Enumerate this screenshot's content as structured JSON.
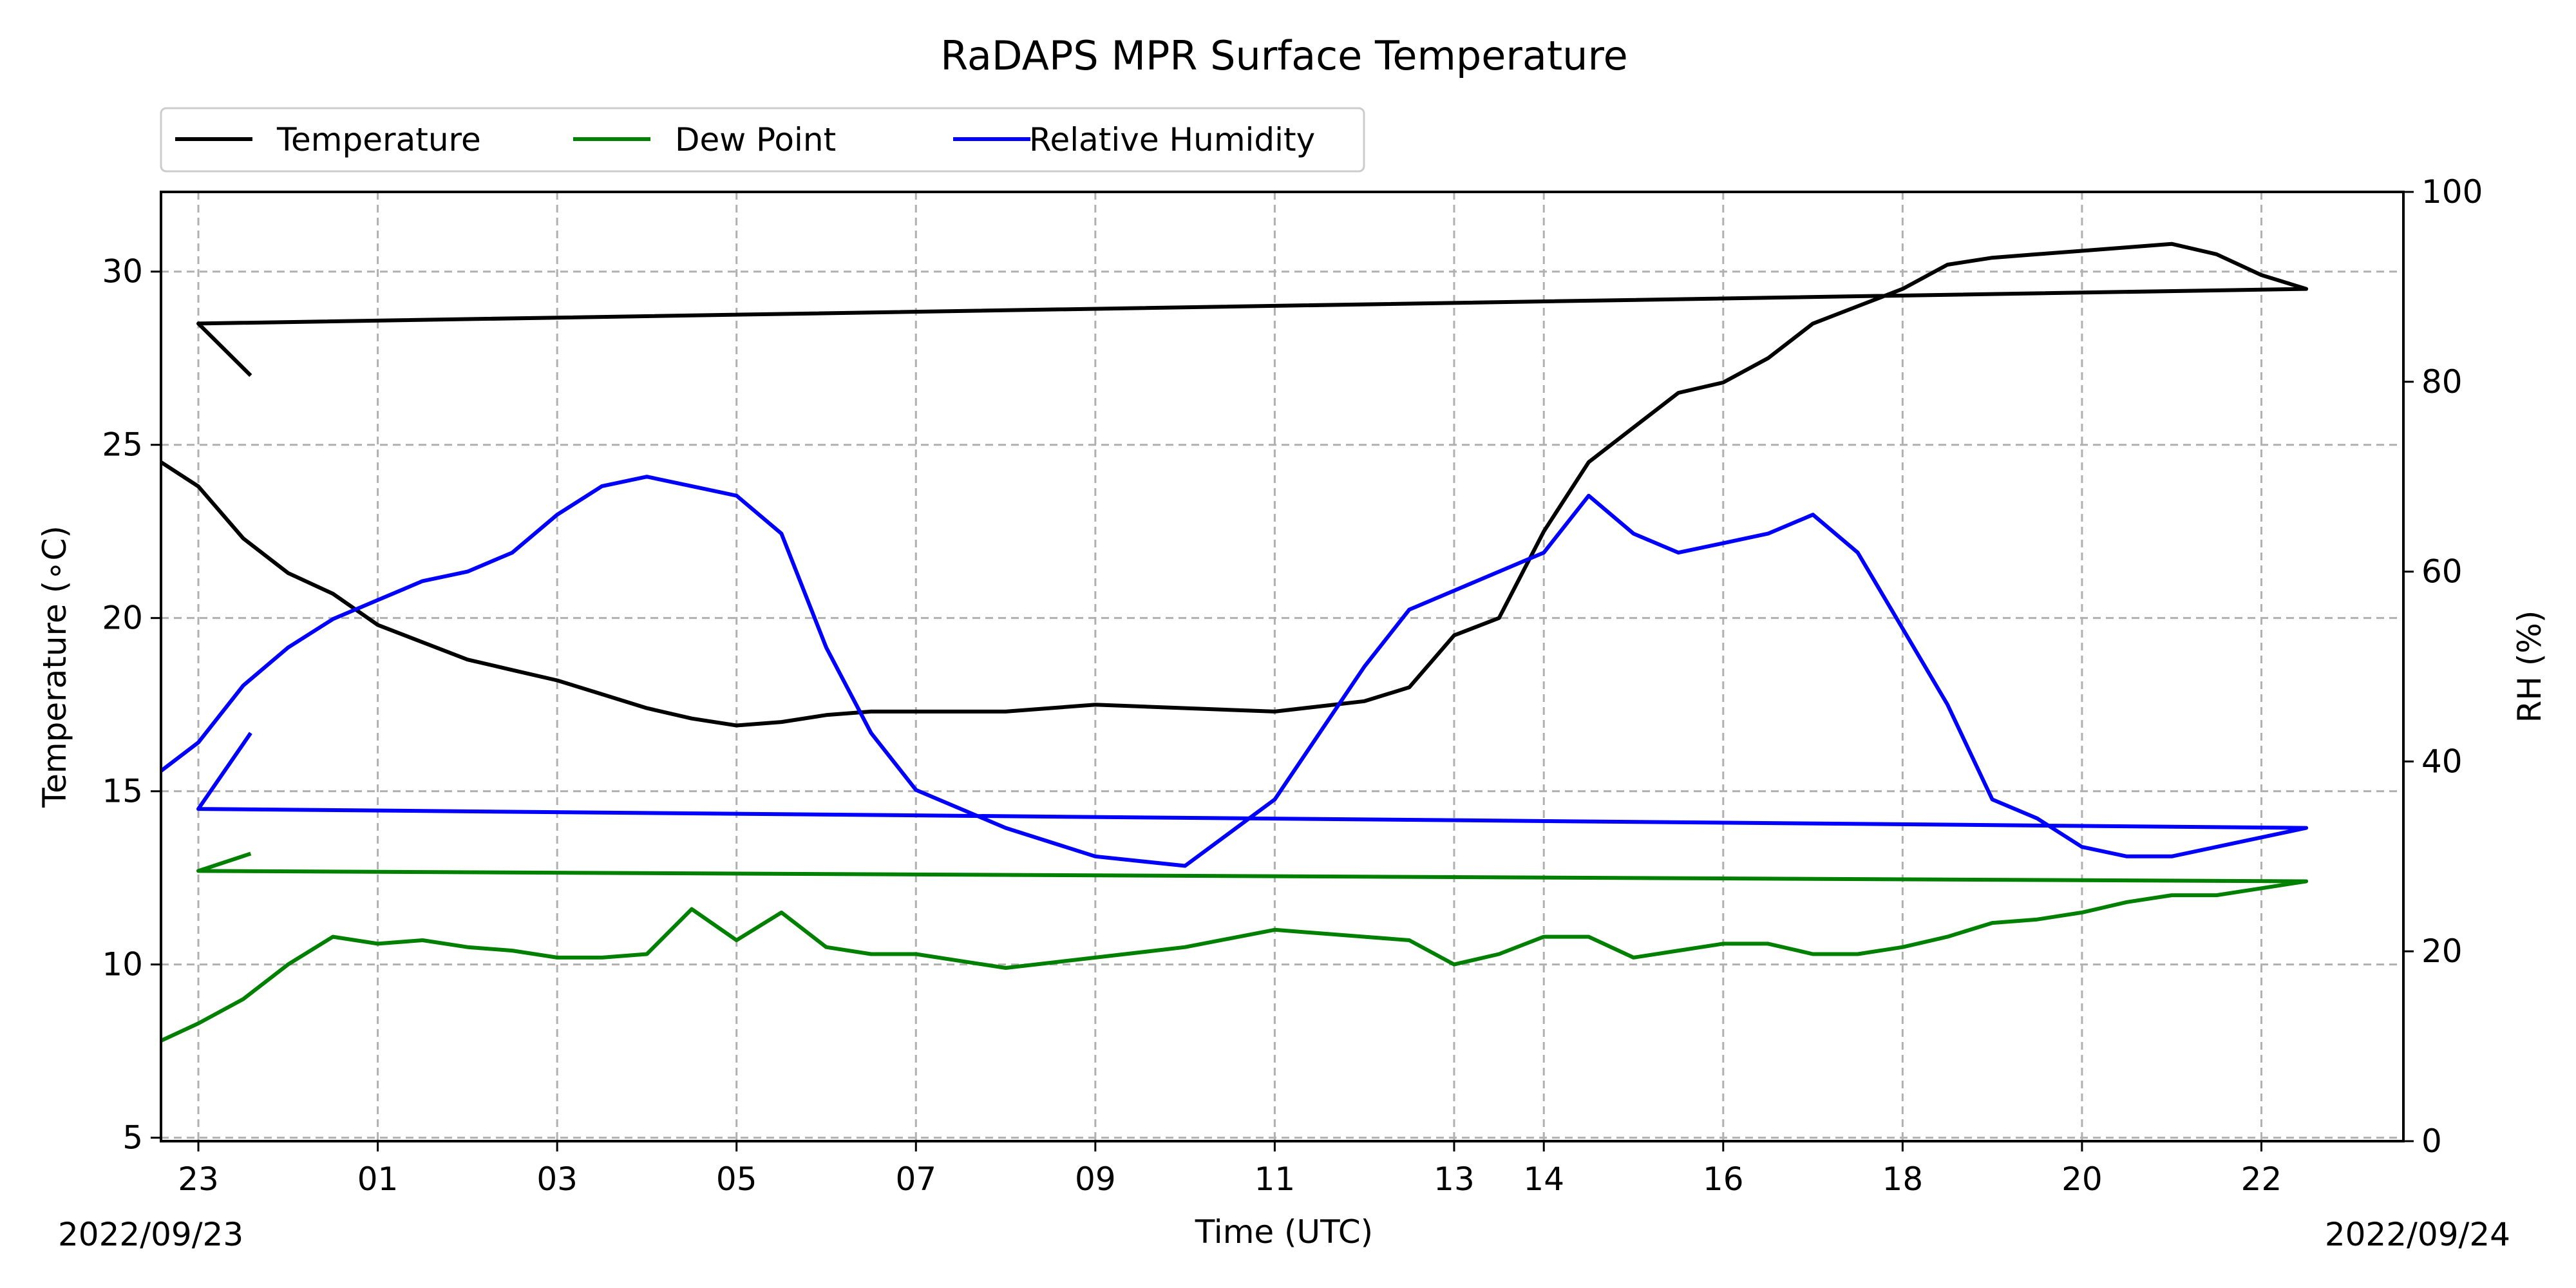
{
  "chart_data": {
    "type": "line",
    "title": "RaDAPS MPR Surface Temperature",
    "xlabel": "Time (UTC)",
    "ylabel_left": "Temperature (∘C)",
    "ylabel_right": "RH (%)",
    "start_date_label": "2022/09/23",
    "end_date_label": "2022/09/24",
    "x_tick_labels": [
      "23",
      "01",
      "03",
      "05",
      "07",
      "09",
      "11",
      "13",
      "14",
      "16",
      "18",
      "20",
      "22"
    ],
    "y_left_ticks": [
      "5",
      "10",
      "15",
      "20",
      "25",
      "30"
    ],
    "y_right_ticks": [
      "0",
      "20",
      "40",
      "60",
      "80",
      "100"
    ],
    "ylim_left": [
      4.9,
      32.3
    ],
    "ylim_right": [
      0,
      100
    ],
    "grid": true,
    "legend_placement": "top-left (above plot)",
    "series": [
      {
        "name": "Temperature",
        "color": "#000000",
        "axis": "left",
        "x": [
          "22:35",
          "23:00",
          "23:30",
          "00:00",
          "00:30",
          "01:00",
          "01:30",
          "02:00",
          "02:30",
          "03:00",
          "03:30",
          "04:00",
          "04:30",
          "05:00",
          "05:30",
          "06:00",
          "06:30",
          "07:00",
          "08:00",
          "09:00",
          "10:00",
          "11:00",
          "12:00",
          "12:30",
          "13:00",
          "13:30",
          "14:00",
          "14:30",
          "15:00",
          "15:30",
          "16:00",
          "16:30",
          "17:00",
          "17:30",
          "18:00",
          "18:30",
          "19:00",
          "19:30",
          "20:00",
          "20:30",
          "21:00",
          "21:30",
          "22:00",
          "22:30",
          "23:00",
          "23:35"
        ],
        "values": [
          24.5,
          23.8,
          22.3,
          21.3,
          20.7,
          19.8,
          19.3,
          18.8,
          18.5,
          18.2,
          17.8,
          17.4,
          17.1,
          16.9,
          17.0,
          17.2,
          17.3,
          17.3,
          17.3,
          17.5,
          17.4,
          17.3,
          17.6,
          18.0,
          19.5,
          20.0,
          22.5,
          24.5,
          25.5,
          26.5,
          26.8,
          27.5,
          28.5,
          29.0,
          29.5,
          30.2,
          30.4,
          30.5,
          30.6,
          30.7,
          30.8,
          30.5,
          29.9,
          29.5,
          28.5,
          27.0
        ]
      },
      {
        "name": "Dew Point",
        "color": "#008000",
        "axis": "left",
        "x": [
          "22:35",
          "23:00",
          "23:30",
          "00:00",
          "00:30",
          "01:00",
          "01:30",
          "02:00",
          "02:30",
          "03:00",
          "03:30",
          "04:00",
          "04:30",
          "05:00",
          "05:30",
          "06:00",
          "06:30",
          "07:00",
          "08:00",
          "09:00",
          "10:00",
          "11:00",
          "12:00",
          "12:30",
          "13:00",
          "13:30",
          "14:00",
          "14:30",
          "15:00",
          "15:30",
          "16:00",
          "16:30",
          "17:00",
          "17:30",
          "18:00",
          "18:30",
          "19:00",
          "19:30",
          "20:00",
          "20:30",
          "21:00",
          "21:30",
          "22:00",
          "22:30",
          "23:00",
          "23:35"
        ],
        "values": [
          7.8,
          8.3,
          9.0,
          10.0,
          10.8,
          10.6,
          10.7,
          10.5,
          10.4,
          10.2,
          10.2,
          10.3,
          11.6,
          10.7,
          11.5,
          10.5,
          10.3,
          10.3,
          9.9,
          10.2,
          10.5,
          11.0,
          10.8,
          10.7,
          10.0,
          10.3,
          10.8,
          10.8,
          10.2,
          10.4,
          10.6,
          10.6,
          10.3,
          10.3,
          10.5,
          10.8,
          11.2,
          11.3,
          11.5,
          11.8,
          12.0,
          12.0,
          12.2,
          12.4,
          12.7,
          13.2
        ]
      },
      {
        "name": "Relative Humidity",
        "color": "#0000ff",
        "axis": "right",
        "x": [
          "22:35",
          "23:00",
          "23:30",
          "00:00",
          "00:30",
          "01:00",
          "01:30",
          "02:00",
          "02:30",
          "03:00",
          "03:30",
          "04:00",
          "04:30",
          "05:00",
          "05:30",
          "06:00",
          "06:30",
          "07:00",
          "08:00",
          "09:00",
          "10:00",
          "11:00",
          "12:00",
          "12:30",
          "13:00",
          "13:30",
          "14:00",
          "14:30",
          "15:00",
          "15:30",
          "16:00",
          "16:30",
          "17:00",
          "17:30",
          "18:00",
          "18:30",
          "19:00",
          "19:30",
          "20:00",
          "20:30",
          "21:00",
          "21:30",
          "22:00",
          "22:30",
          "23:00",
          "23:35"
        ],
        "values": [
          39,
          42,
          48,
          52,
          55,
          57,
          59,
          60,
          62,
          66,
          69,
          70,
          69,
          68,
          64,
          52,
          43,
          37,
          33,
          30,
          29,
          36,
          50,
          56,
          58,
          60,
          62,
          68,
          64,
          62,
          63,
          64,
          66,
          62,
          54,
          46,
          36,
          34,
          31,
          30,
          30,
          31,
          32,
          33,
          35,
          43
        ]
      }
    ]
  }
}
